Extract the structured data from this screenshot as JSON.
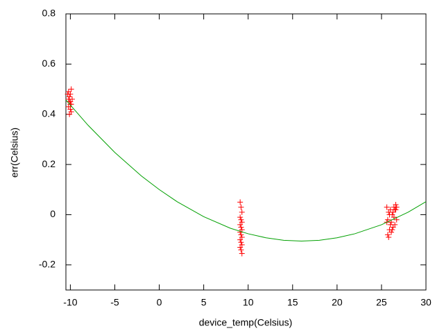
{
  "chart_data": {
    "type": "scatter",
    "x_label": "device_temp(Celsius)",
    "y_label": "err(Celsius)",
    "xlim": [
      -10.5,
      30
    ],
    "xticks": [
      -10,
      -5,
      0,
      5,
      10,
      15,
      20,
      25,
      30
    ],
    "ylim": [
      -0.3,
      0.8
    ],
    "yticks": [
      -0.2,
      0,
      0.2,
      0.4,
      0.6,
      0.8
    ],
    "series": [
      {
        "color": "#ff0000",
        "marker": "+",
        "x": [
          -10.2,
          -10.1,
          -10.0,
          -9.9,
          -10.3,
          -10.0,
          -9.8,
          -10.1,
          -10.2,
          -9.9,
          -10.0,
          -10.1,
          -9.9,
          -10.0,
          -10.2,
          9.1,
          9.2,
          9.3,
          9.1,
          9.2,
          9.3,
          9.1,
          9.2,
          9.3,
          9.1,
          9.2,
          9.3,
          9.1,
          9.2,
          9.3,
          9.1,
          9.2,
          9.3,
          25.6,
          25.7,
          25.8,
          25.9,
          26.0,
          26.1,
          26.2,
          26.3,
          26.4,
          26.5,
          26.6,
          26.7,
          25.6,
          25.8,
          26.0,
          26.2,
          26.4,
          26.6,
          25.7,
          25.9,
          26.1,
          26.3,
          26.5,
          26.7
        ],
        "values": [
          0.49,
          0.47,
          0.45,
          0.44,
          0.48,
          0.42,
          0.46,
          0.4,
          0.43,
          0.41,
          0.48,
          0.45,
          0.5,
          0.44,
          0.46,
          0.05,
          0.03,
          0.01,
          -0.01,
          -0.02,
          -0.03,
          -0.04,
          -0.05,
          -0.06,
          -0.07,
          -0.08,
          -0.09,
          -0.1,
          -0.11,
          -0.12,
          -0.13,
          -0.14,
          -0.155,
          0.03,
          -0.08,
          0.01,
          -0.06,
          0.02,
          -0.07,
          0.0,
          -0.05,
          0.03,
          -0.04,
          0.04,
          -0.02,
          -0.03,
          -0.09,
          -0.04,
          -0.06,
          -0.01,
          0.02,
          -0.02,
          0.0,
          -0.03,
          0.01,
          0.02,
          0.03
        ]
      },
      {
        "color": "#00a000",
        "marker": "line",
        "x": [
          -10.5,
          -8,
          -5,
          -2,
          0,
          2,
          5,
          8,
          10,
          12,
          14,
          16,
          18,
          20,
          22,
          25,
          28,
          30
        ],
        "values": [
          0.457,
          0.356,
          0.248,
          0.154,
          0.1,
          0.052,
          -0.008,
          -0.054,
          -0.076,
          -0.092,
          -0.102,
          -0.105,
          -0.102,
          -0.092,
          -0.076,
          -0.04,
          0.01,
          0.052
        ]
      }
    ]
  }
}
